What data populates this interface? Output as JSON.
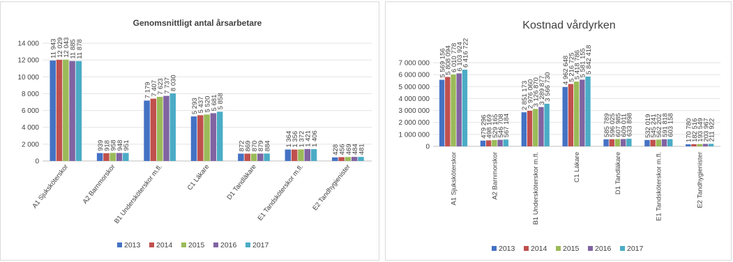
{
  "chart_data": [
    {
      "type": "bar",
      "title": "Genomsnittligt antal årsarbetare",
      "xlabel": "",
      "ylabel": "",
      "ylim": [
        0,
        14000
      ],
      "yticks": [
        0,
        2000,
        4000,
        6000,
        8000,
        10000,
        12000,
        14000
      ],
      "ytick_labels": [
        "0",
        "2 000",
        "4 000",
        "6 000",
        "8 000",
        "10 000",
        "12 000",
        "14 000"
      ],
      "grid": true,
      "legend_position": "bottom",
      "categories": [
        "A1 Sjuksköterskor",
        "A2 Barnmorskor",
        "B1 Undersköterskor m.fl.",
        "C1 Läkare",
        "D1 Tandläkare",
        "E1 Tandsköterskor m.fl.",
        "E2 Tandhygienister"
      ],
      "series": [
        {
          "name": "2013",
          "color": "#4472c4",
          "values": [
            11943,
            939,
            7179,
            5293,
            872,
            1364,
            428
          ],
          "labels": [
            "11 943",
            "939",
            "7 179",
            "5 293",
            "872",
            "1 364",
            "428"
          ]
        },
        {
          "name": "2014",
          "color": "#c0504d",
          "values": [
            12029,
            918,
            7407,
            5437,
            869,
            1356,
            456
          ],
          "labels": [
            "12 029",
            "918",
            "7 407",
            "5 437",
            "869",
            "1 356",
            "456"
          ]
        },
        {
          "name": "2015",
          "color": "#9bbb59",
          "values": [
            12043,
            958,
            7623,
            5520,
            870,
            1372,
            469
          ],
          "labels": [
            "12 043",
            "958",
            "7 623",
            "5 520",
            "870",
            "1 372",
            "469"
          ]
        },
        {
          "name": "2016",
          "color": "#8064a2",
          "values": [
            11885,
            948,
            7737,
            5681,
            879,
            1421,
            484
          ],
          "labels": [
            "11 885",
            "948",
            "7 737",
            "5 681",
            "879",
            "1 421",
            "484"
          ]
        },
        {
          "name": "2017",
          "color": "#4bacc6",
          "values": [
            11878,
            951,
            8030,
            5858,
            884,
            1406,
            481
          ],
          "labels": [
            "11 878",
            "951",
            "8 030",
            "5 858",
            "884",
            "1 406",
            "481"
          ]
        }
      ]
    },
    {
      "type": "bar",
      "title": "Kostnad vårdyrken",
      "xlabel": "",
      "ylabel": "",
      "ylim": [
        0,
        7000000
      ],
      "yticks": [
        0,
        1000000,
        2000000,
        3000000,
        4000000,
        5000000,
        6000000,
        7000000
      ],
      "ytick_labels": [
        "0",
        "1 000 000",
        "2 000 000",
        "3 000 000",
        "4 000 000",
        "5 000 000",
        "6 000 000",
        "7 000 000"
      ],
      "grid": true,
      "legend_position": "bottom",
      "categories": [
        "A1 Sjuksköterskor",
        "A2 Barnmorskor",
        "B1 Undersköterskor m.fl.",
        "C1 Läkare",
        "D1 Tandläkare",
        "E1 Tandsköterskor m.fl.",
        "E2 Tandhygienister"
      ],
      "series": [
        {
          "name": "2013",
          "color": "#4472c4",
          "values": [
            5569156,
            479296,
            2851173,
            4962648,
            585789,
            532019,
            170780
          ],
          "labels": [
            "5 569 156",
            "479 296",
            "2 851 173",
            "4 962 648",
            "585 789",
            "532 019",
            "170 780"
          ]
        },
        {
          "name": "2014",
          "color": "#c0504d",
          "values": [
            5808094,
            498169,
            2976060,
            5216725,
            596025,
            545241,
            182516
          ],
          "labels": [
            "5 808 094",
            "498 169",
            "2 976 060",
            "5 216 725",
            "596 025",
            "545 241",
            "182 516"
          ]
        },
        {
          "name": "2015",
          "color": "#9bbb59",
          "values": [
            6010778,
            529165,
            3126870,
            5418786,
            607985,
            562202,
            193549
          ],
          "labels": [
            "6 010 778",
            "529 165",
            "3 126 870",
            "5 418 786",
            "607 985",
            "562 202",
            "193 549"
          ]
        },
        {
          "name": "2016",
          "color": "#8064a2",
          "values": [
            6103924,
            546708,
            3289877,
            5581155,
            609011,
            591818,
            203967
          ],
          "labels": [
            "6 103 924",
            "546 708",
            "3 289 877",
            "5 581 155",
            "609 011",
            "591 818",
            "203 967"
          ]
        },
        {
          "name": "2017",
          "color": "#4bacc6",
          "values": [
            6416722,
            567184,
            3566730,
            5842418,
            633898,
            603158,
            211922
          ],
          "labels": [
            "6 416 722",
            "567 184",
            "3 566 730",
            "5 842 418",
            "633 898",
            "603 158",
            "211 922"
          ]
        }
      ]
    }
  ]
}
